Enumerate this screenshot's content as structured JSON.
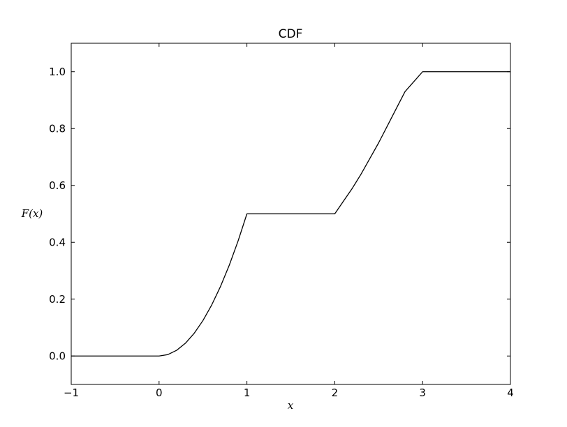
{
  "chart_data": {
    "type": "line",
    "title": "CDF",
    "xlabel": "x",
    "ylabel": "F(x)",
    "xlim": [
      -1,
      4
    ],
    "ylim": [
      -0.1,
      1.1
    ],
    "xticks": [
      -1,
      0,
      1,
      2,
      3,
      4
    ],
    "xtick_labels": [
      "−1",
      "0",
      "1",
      "2",
      "3",
      "4"
    ],
    "yticks": [
      0.0,
      0.2,
      0.4,
      0.6,
      0.8,
      1.0
    ],
    "ytick_labels": [
      "0.0",
      "0.2",
      "0.4",
      "0.6",
      "0.8",
      "1.0"
    ],
    "grid": false,
    "legend": "none",
    "series": [
      {
        "color": "#000000",
        "x": [
          -1,
          0,
          0.1,
          0.2,
          0.3,
          0.4,
          0.5,
          0.6,
          0.7,
          0.8,
          0.9,
          1.0,
          1.0,
          2.0,
          2.1,
          2.2,
          2.3,
          2.4,
          2.5,
          2.6,
          2.7,
          2.8,
          2.9,
          3.0,
          3.0,
          4.0
        ],
        "y": [
          0,
          0,
          0.005,
          0.02,
          0.045,
          0.08,
          0.125,
          0.18,
          0.245,
          0.32,
          0.405,
          0.5,
          0.5,
          0.5,
          0.545,
          0.59,
          0.64,
          0.695,
          0.75,
          0.81,
          0.87,
          0.93,
          0.965,
          1.0,
          1.0,
          1.0
        ]
      }
    ]
  }
}
